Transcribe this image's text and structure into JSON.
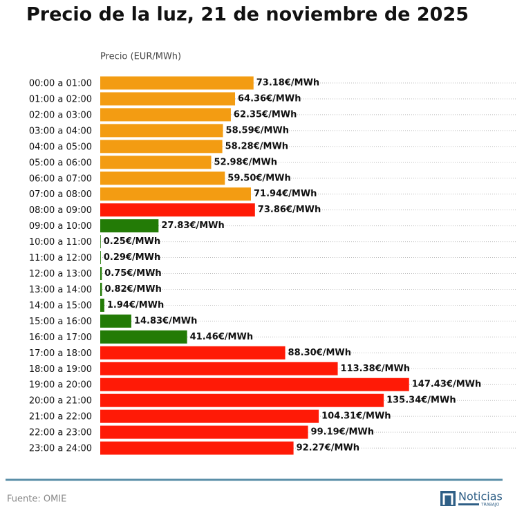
{
  "chart_data": {
    "type": "bar",
    "orientation": "horizontal",
    "title": "Precio de la luz, 21 de noviembre de 2025",
    "x_label": "Precio (EUR/MWh)",
    "categories": [
      "00:00 a 01:00",
      "01:00 a 02:00",
      "02:00 a 03:00",
      "03:00 a 04:00",
      "04:00 a 05:00",
      "05:00 a 06:00",
      "06:00 a 07:00",
      "07:00 a 08:00",
      "08:00 a 09:00",
      "09:00 a 10:00",
      "10:00 a 11:00",
      "11:00 a 12:00",
      "12:00 a 13:00",
      "13:00 a 14:00",
      "14:00 a 15:00",
      "15:00 a 16:00",
      "16:00 a 17:00",
      "17:00 a 18:00",
      "18:00 a 19:00",
      "19:00 a 20:00",
      "20:00 a 21:00",
      "21:00 a 22:00",
      "22:00 a 23:00",
      "23:00 a 24:00"
    ],
    "values": [
      73.18,
      64.36,
      62.35,
      58.59,
      58.28,
      52.98,
      59.5,
      71.94,
      73.86,
      27.83,
      0.25,
      0.29,
      0.75,
      0.82,
      1.94,
      14.83,
      41.46,
      88.3,
      113.38,
      147.43,
      135.34,
      104.31,
      99.19,
      92.27
    ],
    "value_labels": [
      "73.18€/MWh",
      "64.36€/MWh",
      "62.35€/MWh",
      "58.59€/MWh",
      "58.28€/MWh",
      "52.98€/MWh",
      "59.50€/MWh",
      "71.94€/MWh",
      "73.86€/MWh",
      "27.83€/MWh",
      "0.25€/MWh",
      "0.29€/MWh",
      "0.75€/MWh",
      "0.82€/MWh",
      "1.94€/MWh",
      "14.83€/MWh",
      "41.46€/MWh",
      "88.30€/MWh",
      "113.38€/MWh",
      "147.43€/MWh",
      "135.34€/MWh",
      "104.31€/MWh",
      "99.19€/MWh",
      "92.27€/MWh"
    ],
    "colors": [
      "#f39c12",
      "#f39c12",
      "#f39c12",
      "#f39c12",
      "#f39c12",
      "#f39c12",
      "#f39c12",
      "#f39c12",
      "#ff1a06",
      "#237b06",
      "#237b06",
      "#237b06",
      "#237b06",
      "#237b06",
      "#237b06",
      "#237b06",
      "#237b06",
      "#ff1a06",
      "#ff1a06",
      "#ff1a06",
      "#ff1a06",
      "#ff1a06",
      "#ff1a06",
      "#ff1a06"
    ],
    "xlim": [
      0,
      199
    ],
    "source": "Fuente: OMIE",
    "logo": {
      "name": "Noticias",
      "sub": "TRABAJO"
    }
  }
}
